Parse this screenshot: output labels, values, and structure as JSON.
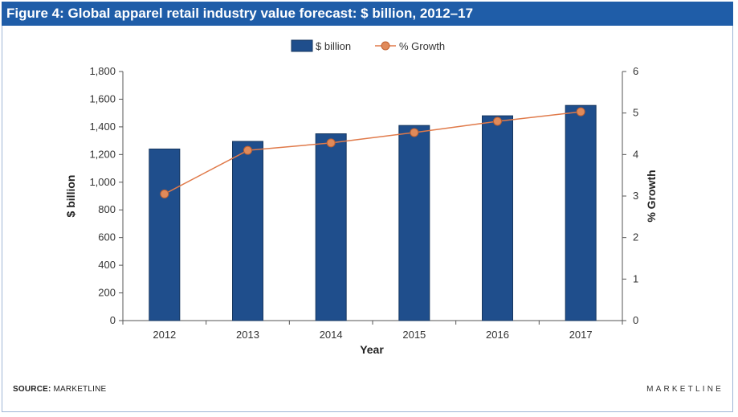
{
  "title": "Figure 4: Global apparel retail industry value forecast: $ billion, 2012–17",
  "footer": {
    "source_label": "SOURCE:",
    "source_value": "MARKETLINE",
    "brand": "MARKETLINE"
  },
  "colors": {
    "title_bar": "#1f5da8",
    "bar_fill": "#1f4e8c",
    "line": "#e07a4a",
    "marker_fill": "#e08a5a"
  },
  "chart_data": {
    "type": "bar",
    "categories": [
      "2012",
      "2013",
      "2014",
      "2015",
      "2016",
      "2017"
    ],
    "series": [
      {
        "name": "$ billion",
        "type": "bar",
        "axis": "left",
        "values": [
          1240,
          1295,
          1350,
          1410,
          1480,
          1555
        ]
      },
      {
        "name": "% Growth",
        "type": "line",
        "axis": "right",
        "values": [
          3.05,
          4.1,
          4.28,
          4.53,
          4.8,
          5.03
        ]
      }
    ],
    "xlabel": "Year",
    "ylabel": "$ billion",
    "y2label": "% Growth",
    "ylim": [
      0,
      1800
    ],
    "y2lim": [
      0,
      6
    ],
    "yticks": [
      "0",
      "200",
      "400",
      "600",
      "800",
      "1,000",
      "1,200",
      "1,400",
      "1,600",
      "1,800"
    ],
    "y2ticks": [
      "0",
      "1",
      "2",
      "3",
      "4",
      "5",
      "6"
    ],
    "legend": "top-center",
    "grid": false
  }
}
